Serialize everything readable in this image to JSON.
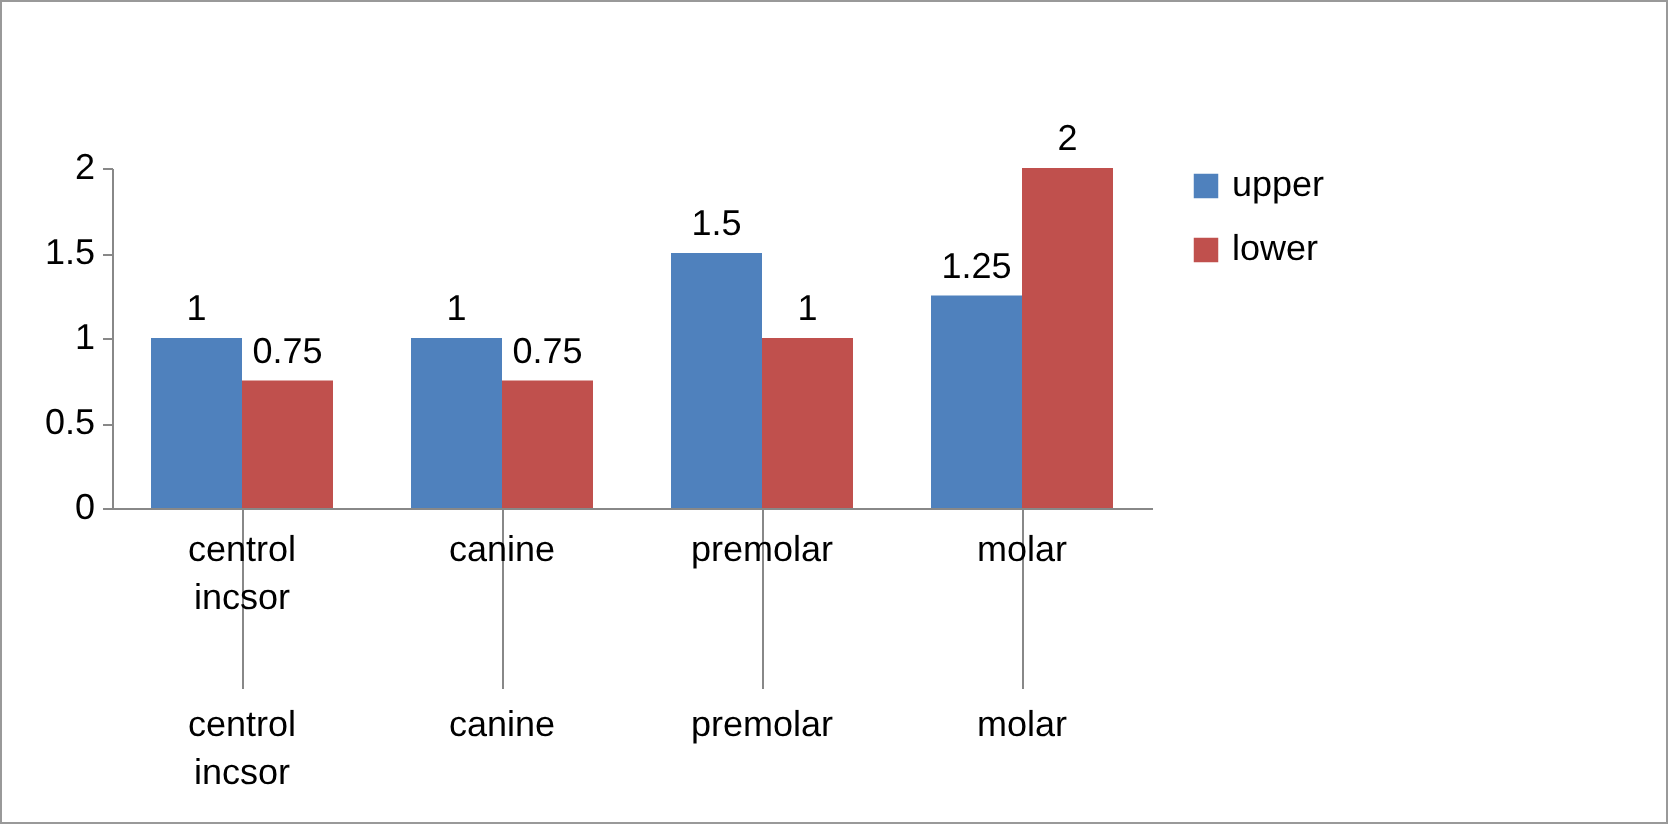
{
  "chart_data": {
    "type": "bar",
    "categories": [
      "centrol incsor",
      "canine",
      "premolar",
      "molar"
    ],
    "series": [
      {
        "name": "upper",
        "color": "#4f81bd",
        "values": [
          1,
          1,
          1.5,
          1.25
        ]
      },
      {
        "name": "lower",
        "color": "#c0504d",
        "values": [
          0.75,
          0.75,
          1,
          2
        ]
      }
    ],
    "ylim": [
      0,
      2
    ],
    "yticks": [
      0,
      0.5,
      1,
      1.5,
      2
    ],
    "grid": false,
    "legend": "right",
    "data_labels": true
  }
}
